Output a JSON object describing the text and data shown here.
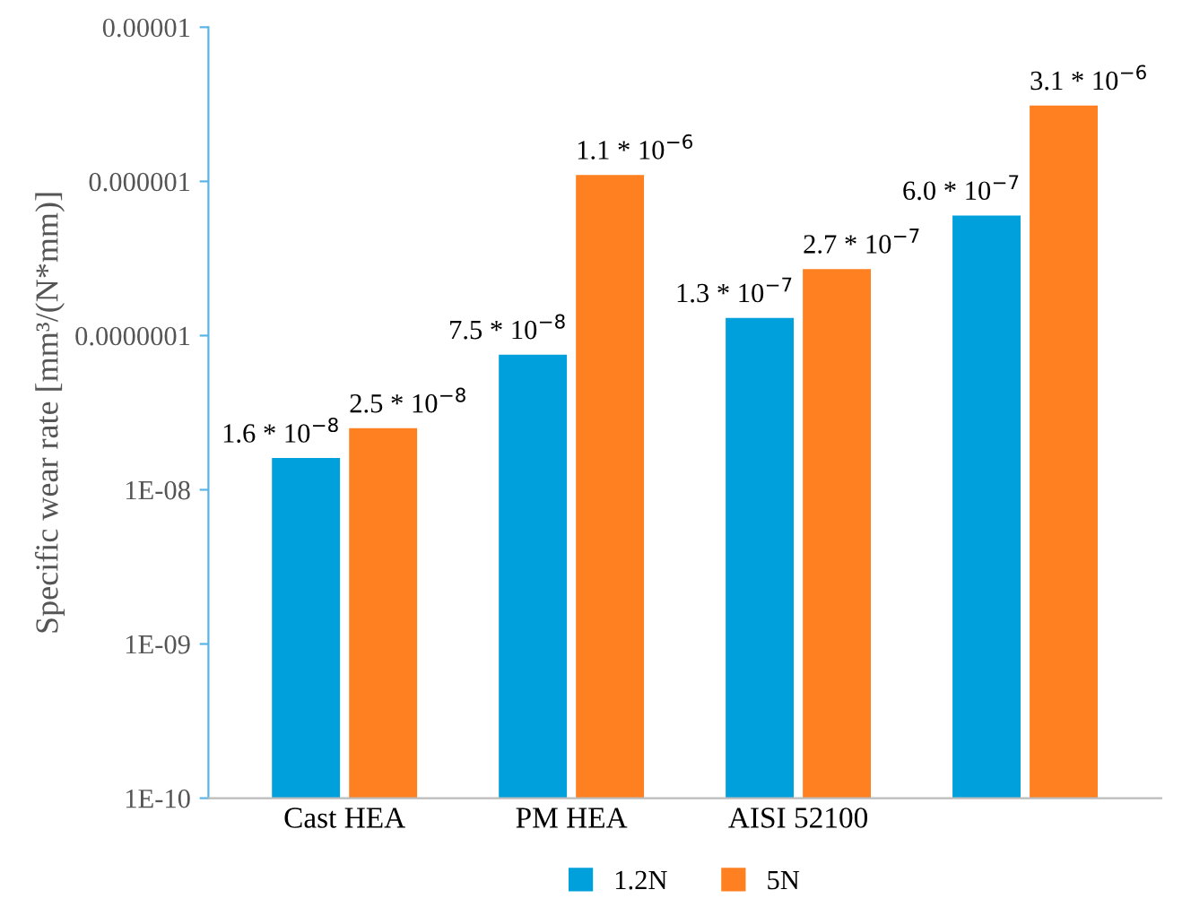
{
  "chart_data": {
    "type": "bar",
    "ylabel": "Specific wear rate [mm³/(N*mm)]",
    "categories": [
      "Cast HEA",
      "PM HEA",
      "AISI 52100",
      null
    ],
    "series": [
      {
        "name": "1.2N",
        "color": "#00a0dc",
        "values": [
          1.6e-08,
          7.5e-08,
          1.3e-07,
          6e-07
        ],
        "value_labels": [
          "1.6 * 10$^{−8}$",
          "7.5 * 10$^{−8}$",
          "1.3 * 10$^{−7}$",
          "6.0 * 10$^{−7}$"
        ]
      },
      {
        "name": "5N",
        "color": "#ff8020",
        "values": [
          2.5e-08,
          1.1e-06,
          2.7e-07,
          3.1e-06
        ],
        "value_labels": [
          "2.5 * 10$^{−8}$",
          "1.1 * 10$^{−6}$",
          "2.7 * 10$^{−7}$",
          "3.1 * 10$^{−6}$"
        ]
      }
    ],
    "log": "y",
    "ylim": [
      1e-10,
      1e-05
    ],
    "yticks": [
      {
        "value": 1e-10,
        "label": "1E-10"
      },
      {
        "value": 1e-09,
        "label": "1E-09"
      },
      {
        "value": 1e-08,
        "label": "1E-08"
      },
      {
        "value": 1e-07,
        "label": "0.0000001"
      },
      {
        "value": 1e-06,
        "label": "0.000001"
      },
      {
        "value": 1e-05,
        "label": "0.00001"
      }
    ],
    "grid": false,
    "legend": "bottom"
  }
}
